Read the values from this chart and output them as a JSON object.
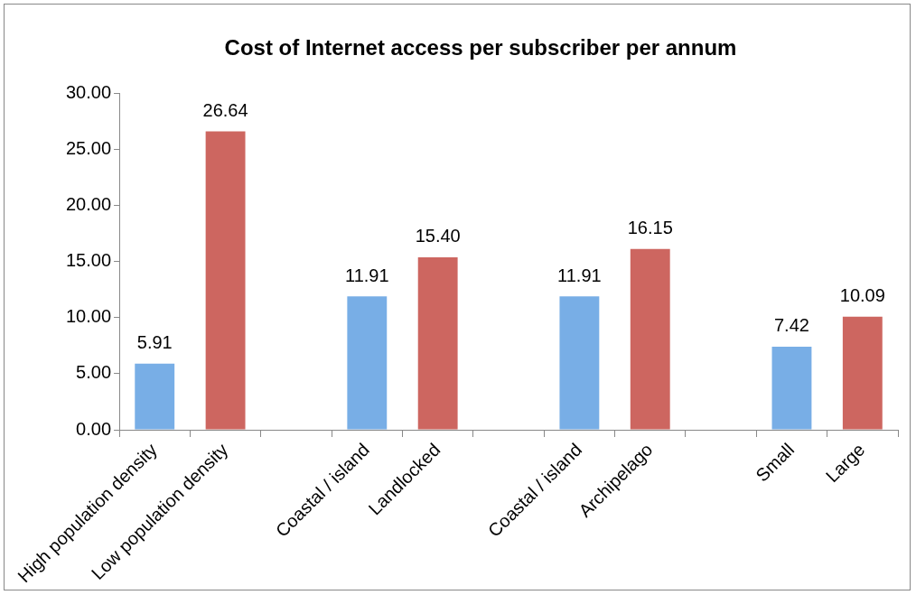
{
  "chart_data": {
    "type": "bar",
    "title": "Cost of Internet access per subscriber per annum",
    "categories": [
      "High population density",
      "Low population density",
      null,
      "Coastal / island",
      "Landlocked",
      null,
      "Coastal / island",
      "Archipelago",
      null,
      "Small",
      "Large"
    ],
    "values": [
      5.91,
      26.64,
      null,
      11.91,
      15.4,
      null,
      11.91,
      16.15,
      null,
      7.42,
      10.09
    ],
    "value_labels": [
      "5.91",
      "26.64",
      null,
      "11.91",
      "15.40",
      null,
      "11.91",
      "16.15",
      null,
      "7.42",
      "10.09"
    ],
    "colors": [
      "#78aee6",
      "#cd6660",
      null,
      "#78aee6",
      "#cd6660",
      null,
      "#78aee6",
      "#cd6660",
      null,
      "#78aee6",
      "#cd6660"
    ],
    "ylim": [
      0,
      30
    ],
    "yticks": [
      {
        "value": 0,
        "label": "0.00"
      },
      {
        "value": 5,
        "label": "5.00"
      },
      {
        "value": 10,
        "label": "10.00"
      },
      {
        "value": 15,
        "label": "15.00"
      },
      {
        "value": 20,
        "label": "20.00"
      },
      {
        "value": 25,
        "label": "25.00"
      },
      {
        "value": 30,
        "label": "30.00"
      }
    ],
    "grid": false
  }
}
